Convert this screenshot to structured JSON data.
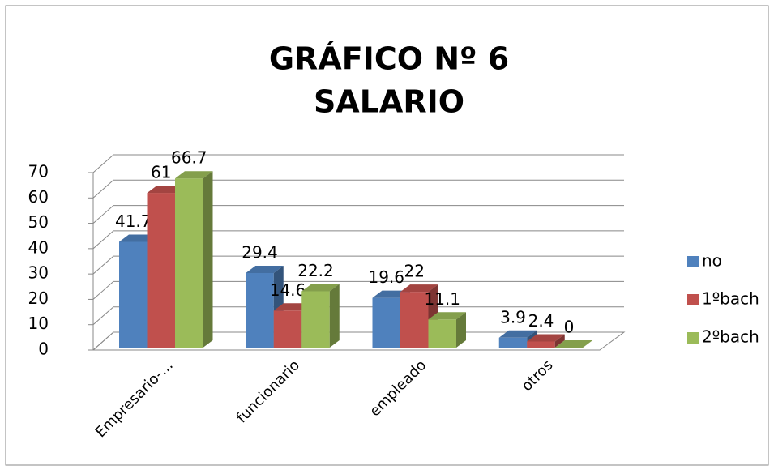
{
  "chart_data": {
    "type": "bar3d",
    "title": "GRÁFICO Nº 6",
    "subtitle": "SALARIO",
    "categories": [
      "Empresario-...",
      "funcionario",
      "empleado",
      "otros"
    ],
    "series": [
      {
        "name": "no",
        "color": "#4f81bd",
        "values": [
          41.7,
          29.4,
          19.6,
          3.9
        ]
      },
      {
        "name": "1ºbach",
        "color": "#c0504d",
        "values": [
          61,
          14.6,
          22,
          2.4
        ]
      },
      {
        "name": "2ºbach",
        "color": "#9bbb59",
        "values": [
          66.7,
          22.2,
          11.1,
          0
        ]
      }
    ],
    "ylim": [
      0,
      70
    ],
    "yticks": [
      0,
      10,
      20,
      30,
      40,
      50,
      60,
      70
    ],
    "grid": true,
    "legend": "right"
  }
}
